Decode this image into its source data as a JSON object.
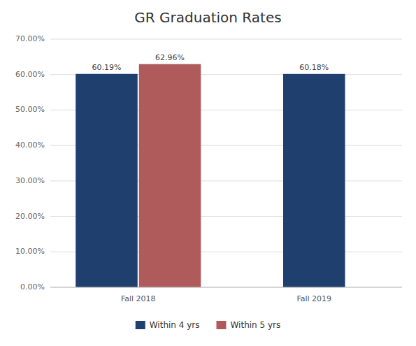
{
  "chart_data": {
    "type": "bar",
    "title": "GR Graduation Rates",
    "categories": [
      "Fall 2018",
      "Fall 2019"
    ],
    "series": [
      {
        "name": "Within 4 yrs",
        "color": "#1F3F6E",
        "values": [
          60.19,
          60.18
        ],
        "value_labels": [
          "60.19%",
          "60.18%"
        ]
      },
      {
        "name": "Within 5 yrs",
        "color": "#B05B5B",
        "values": [
          62.96,
          null
        ],
        "value_labels": [
          "62.96%",
          null
        ]
      }
    ],
    "ylim": [
      0,
      70
    ],
    "yticks": [
      {
        "value": 0,
        "label": "0.00%"
      },
      {
        "value": 10,
        "label": "10.00%"
      },
      {
        "value": 20,
        "label": "20.00%"
      },
      {
        "value": 30,
        "label": "30.00%"
      },
      {
        "value": 40,
        "label": "40.00%"
      },
      {
        "value": 50,
        "label": "50.00%"
      },
      {
        "value": 60,
        "label": "60.00%"
      },
      {
        "value": 70,
        "label": "70.00%"
      }
    ],
    "grid": true,
    "legend": "bottom",
    "data_labels": true
  }
}
